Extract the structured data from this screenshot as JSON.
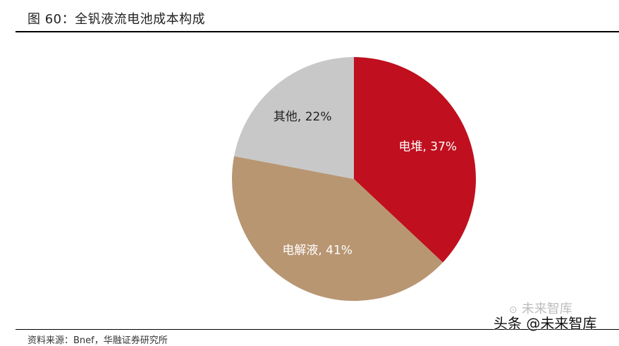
{
  "figure": {
    "title": "图 60：全钒液流电池成本构成",
    "source": "资料来源：Bnef，华融证券研究所"
  },
  "chart_data": {
    "type": "pie",
    "title": "",
    "slices": [
      {
        "label": "电堆",
        "value": 37,
        "display": "电堆, 37%",
        "color": "#c00f1e",
        "text_color": "#ffffff"
      },
      {
        "label": "电解液",
        "value": 41,
        "display": "电解液, 41%",
        "color": "#b89672",
        "text_color": "#ffffff"
      },
      {
        "label": "其他",
        "value": 22,
        "display": "其他, 22%",
        "color": "#c8c8c8",
        "text_color": "#222222"
      }
    ],
    "start": "12 o'clock",
    "direction": "clockwise",
    "legend": "none",
    "labels": "inside"
  },
  "watermark": {
    "text": "未来智库",
    "overlay": "头条 @未来智库",
    "icon": "wechat-icon"
  }
}
